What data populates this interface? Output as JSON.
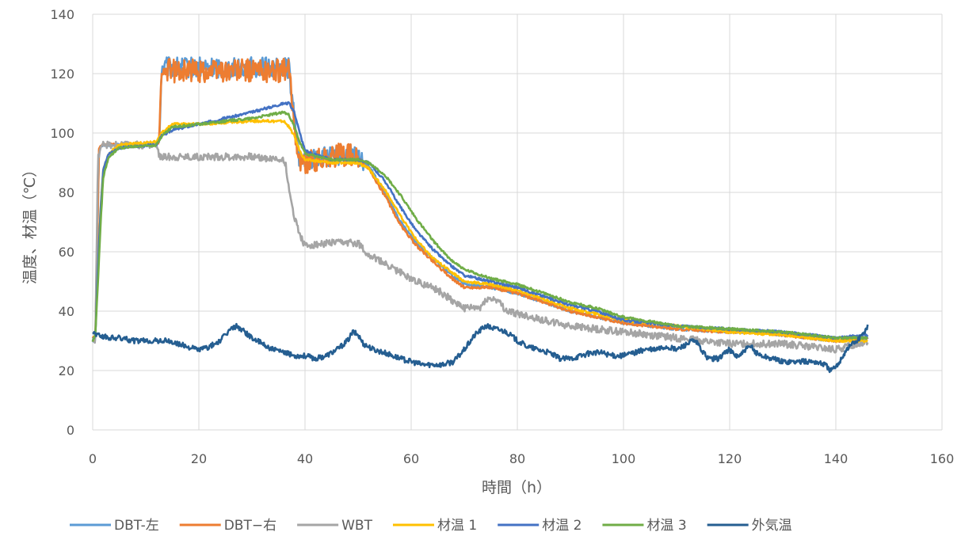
{
  "chart_data": {
    "type": "line",
    "title": "",
    "xlabel": "時間（h）",
    "ylabel": "温度、材温（℃）",
    "xlim": [
      0,
      160
    ],
    "ylim": [
      0,
      140
    ],
    "xticks": [
      0,
      20,
      40,
      60,
      80,
      100,
      120,
      140,
      160
    ],
    "yticks": [
      0,
      20,
      40,
      60,
      80,
      100,
      120,
      140
    ],
    "grid": true,
    "legend_position": "bottom",
    "series": [
      {
        "name": "DBT-左",
        "color": "#5B9BD5",
        "noise": 3.5,
        "points": [
          [
            0,
            30
          ],
          [
            0.5,
            30
          ],
          [
            1.2,
            95
          ],
          [
            2,
            96
          ],
          [
            5,
            96
          ],
          [
            8,
            96
          ],
          [
            12,
            96
          ],
          [
            12.5,
            97
          ],
          [
            13,
            122
          ],
          [
            20,
            122
          ],
          [
            30,
            122
          ],
          [
            36,
            122
          ],
          [
            37,
            122
          ],
          [
            38,
            104
          ],
          [
            39,
            91
          ],
          [
            45,
            92
          ],
          [
            48,
            93
          ],
          [
            50,
            92
          ],
          [
            50.5,
            91
          ],
          [
            52,
            89
          ],
          [
            55,
            80
          ],
          [
            58,
            70
          ],
          [
            61,
            63
          ],
          [
            64,
            58
          ],
          [
            67,
            53
          ],
          [
            70,
            49
          ],
          [
            75,
            48
          ],
          [
            80,
            46
          ],
          [
            85,
            43
          ],
          [
            90,
            40
          ],
          [
            95,
            38
          ],
          [
            100,
            36
          ],
          [
            110,
            34
          ],
          [
            120,
            33
          ],
          [
            125,
            33
          ],
          [
            130,
            32
          ],
          [
            140,
            30
          ],
          [
            146,
            31
          ]
        ]
      },
      {
        "name": "DBT−右",
        "color": "#ED7D31",
        "noise": 4,
        "points": [
          [
            0,
            31
          ],
          [
            0.5,
            31
          ],
          [
            1.2,
            95
          ],
          [
            2,
            96
          ],
          [
            5,
            96
          ],
          [
            8,
            96
          ],
          [
            12,
            96
          ],
          [
            12.5,
            97
          ],
          [
            13,
            121
          ],
          [
            20,
            121
          ],
          [
            30,
            121
          ],
          [
            36,
            121
          ],
          [
            37,
            121
          ],
          [
            38,
            103
          ],
          [
            39,
            90
          ],
          [
            45,
            92
          ],
          [
            48,
            93
          ],
          [
            50,
            91
          ],
          [
            50.5,
            90
          ],
          [
            52,
            88
          ],
          [
            55,
            79
          ],
          [
            58,
            69
          ],
          [
            61,
            62
          ],
          [
            64,
            57
          ],
          [
            67,
            52
          ],
          [
            70,
            48
          ],
          [
            75,
            48
          ],
          [
            80,
            46
          ],
          [
            85,
            43
          ],
          [
            90,
            40
          ],
          [
            95,
            38
          ],
          [
            100,
            36
          ],
          [
            110,
            34
          ],
          [
            120,
            33
          ],
          [
            125,
            33
          ],
          [
            130,
            32
          ],
          [
            140,
            30
          ],
          [
            146,
            31
          ]
        ]
      },
      {
        "name": "WBT",
        "color": "#A5A5A5",
        "noise": 1.2,
        "points": [
          [
            0,
            30
          ],
          [
            0.5,
            30
          ],
          [
            1,
            92
          ],
          [
            2,
            96
          ],
          [
            12,
            96
          ],
          [
            12.5,
            92
          ],
          [
            20,
            92
          ],
          [
            30,
            92
          ],
          [
            36,
            91
          ],
          [
            36.5,
            88
          ],
          [
            37,
            80
          ],
          [
            38,
            72
          ],
          [
            39,
            66
          ],
          [
            40,
            62
          ],
          [
            45,
            63
          ],
          [
            50,
            63
          ],
          [
            52,
            59
          ],
          [
            55,
            56
          ],
          [
            60,
            51
          ],
          [
            65,
            47
          ],
          [
            70,
            41
          ],
          [
            73,
            41
          ],
          [
            74,
            44
          ],
          [
            76,
            44
          ],
          [
            78,
            40
          ],
          [
            85,
            37
          ],
          [
            90,
            35
          ],
          [
            100,
            33
          ],
          [
            105,
            32
          ],
          [
            110,
            31
          ],
          [
            115,
            30
          ],
          [
            120,
            29
          ],
          [
            125,
            29
          ],
          [
            130,
            29
          ],
          [
            135,
            28
          ],
          [
            140,
            27
          ],
          [
            146,
            30
          ]
        ]
      },
      {
        "name": "材温 1",
        "color": "#FFC000",
        "noise": 0.4,
        "points": [
          [
            0,
            30
          ],
          [
            0.5,
            32
          ],
          [
            1,
            55
          ],
          [
            1.5,
            75
          ],
          [
            2,
            88
          ],
          [
            3,
            93
          ],
          [
            5,
            96
          ],
          [
            12,
            97
          ],
          [
            13,
            100
          ],
          [
            15,
            103
          ],
          [
            20,
            103
          ],
          [
            30,
            104
          ],
          [
            36,
            104
          ],
          [
            37,
            102
          ],
          [
            38,
            99
          ],
          [
            39,
            94
          ],
          [
            40,
            91
          ],
          [
            45,
            90
          ],
          [
            50,
            90
          ],
          [
            52,
            88
          ],
          [
            55,
            81
          ],
          [
            58,
            72
          ],
          [
            61,
            64
          ],
          [
            64,
            58
          ],
          [
            67,
            54
          ],
          [
            70,
            50
          ],
          [
            75,
            49
          ],
          [
            80,
            47
          ],
          [
            85,
            44
          ],
          [
            90,
            41
          ],
          [
            95,
            39
          ],
          [
            100,
            37
          ],
          [
            110,
            35
          ],
          [
            120,
            33
          ],
          [
            130,
            32
          ],
          [
            140,
            30
          ],
          [
            146,
            30
          ]
        ]
      },
      {
        "name": "材温 2",
        "color": "#4472C4",
        "noise": 0.4,
        "points": [
          [
            0,
            30
          ],
          [
            0.5,
            32
          ],
          [
            1,
            55
          ],
          [
            1.5,
            75
          ],
          [
            2,
            88
          ],
          [
            3,
            93
          ],
          [
            5,
            95
          ],
          [
            12,
            96
          ],
          [
            13,
            99
          ],
          [
            15,
            101
          ],
          [
            20,
            103
          ],
          [
            30,
            107
          ],
          [
            36,
            110
          ],
          [
            37,
            110
          ],
          [
            38,
            107
          ],
          [
            39,
            100
          ],
          [
            40,
            94
          ],
          [
            45,
            91
          ],
          [
            50,
            91
          ],
          [
            52,
            90
          ],
          [
            55,
            84
          ],
          [
            58,
            75
          ],
          [
            61,
            67
          ],
          [
            64,
            61
          ],
          [
            67,
            56
          ],
          [
            70,
            52
          ],
          [
            75,
            50
          ],
          [
            80,
            48
          ],
          [
            85,
            45
          ],
          [
            90,
            42
          ],
          [
            95,
            40
          ],
          [
            100,
            37
          ],
          [
            110,
            35
          ],
          [
            120,
            34
          ],
          [
            130,
            33
          ],
          [
            140,
            31
          ],
          [
            146,
            32
          ]
        ]
      },
      {
        "name": "材温 3",
        "color": "#70AD47",
        "noise": 0.4,
        "points": [
          [
            0,
            30
          ],
          [
            0.5,
            32
          ],
          [
            1,
            50
          ],
          [
            1.5,
            70
          ],
          [
            2,
            85
          ],
          [
            3,
            92
          ],
          [
            5,
            95
          ],
          [
            12,
            96
          ],
          [
            13,
            99
          ],
          [
            15,
            102
          ],
          [
            20,
            103
          ],
          [
            30,
            105
          ],
          [
            36,
            107
          ],
          [
            37,
            106
          ],
          [
            38,
            102
          ],
          [
            39,
            97
          ],
          [
            40,
            93
          ],
          [
            45,
            91
          ],
          [
            50,
            91
          ],
          [
            52,
            90
          ],
          [
            55,
            86
          ],
          [
            58,
            79
          ],
          [
            61,
            71
          ],
          [
            64,
            64
          ],
          [
            67,
            58
          ],
          [
            70,
            54
          ],
          [
            75,
            51
          ],
          [
            80,
            49
          ],
          [
            85,
            46
          ],
          [
            90,
            43
          ],
          [
            95,
            41
          ],
          [
            100,
            38
          ],
          [
            110,
            35
          ],
          [
            120,
            34
          ],
          [
            130,
            33
          ],
          [
            140,
            31
          ],
          [
            146,
            31
          ]
        ]
      },
      {
        "name": "外気温",
        "color": "#255E91",
        "noise": 0.9,
        "points": [
          [
            0,
            33
          ],
          [
            1,
            32
          ],
          [
            3,
            31
          ],
          [
            5,
            31
          ],
          [
            8,
            30
          ],
          [
            10,
            30
          ],
          [
            12,
            30
          ],
          [
            14,
            30
          ],
          [
            16,
            29
          ],
          [
            18,
            28
          ],
          [
            20,
            27
          ],
          [
            22,
            28
          ],
          [
            24,
            30
          ],
          [
            26,
            34
          ],
          [
            27,
            35
          ],
          [
            28,
            34
          ],
          [
            30,
            31
          ],
          [
            32,
            29
          ],
          [
            34,
            27
          ],
          [
            36,
            26
          ],
          [
            38,
            25
          ],
          [
            40,
            25
          ],
          [
            42,
            24
          ],
          [
            44,
            25
          ],
          [
            46,
            27
          ],
          [
            48,
            30
          ],
          [
            49,
            33
          ],
          [
            50,
            32
          ],
          [
            51,
            29
          ],
          [
            53,
            27
          ],
          [
            55,
            26
          ],
          [
            58,
            24
          ],
          [
            60,
            23
          ],
          [
            62,
            22
          ],
          [
            66,
            22
          ],
          [
            68,
            23
          ],
          [
            70,
            27
          ],
          [
            72,
            32
          ],
          [
            74,
            35
          ],
          [
            76,
            34
          ],
          [
            78,
            33
          ],
          [
            80,
            30
          ],
          [
            82,
            28
          ],
          [
            84,
            27
          ],
          [
            86,
            26
          ],
          [
            88,
            24
          ],
          [
            90,
            24
          ],
          [
            92,
            25
          ],
          [
            94,
            26
          ],
          [
            96,
            26
          ],
          [
            98,
            25
          ],
          [
            100,
            25
          ],
          [
            102,
            26
          ],
          [
            104,
            27
          ],
          [
            106,
            27
          ],
          [
            108,
            28
          ],
          [
            110,
            27
          ],
          [
            112,
            29
          ],
          [
            113,
            30
          ],
          [
            114,
            29
          ],
          [
            115,
            26
          ],
          [
            116,
            24
          ],
          [
            118,
            24
          ],
          [
            119,
            26
          ],
          [
            120,
            27
          ],
          [
            121,
            25
          ],
          [
            122,
            25
          ],
          [
            123,
            27
          ],
          [
            124,
            28
          ],
          [
            125,
            26
          ],
          [
            126,
            25
          ],
          [
            128,
            24
          ],
          [
            130,
            23
          ],
          [
            132,
            23
          ],
          [
            134,
            23
          ],
          [
            136,
            23
          ],
          [
            138,
            22
          ],
          [
            139,
            20
          ],
          [
            140,
            21
          ],
          [
            141,
            24
          ],
          [
            142,
            27
          ],
          [
            143,
            29
          ],
          [
            144,
            30
          ],
          [
            145,
            32
          ],
          [
            146,
            35
          ]
        ]
      }
    ]
  }
}
